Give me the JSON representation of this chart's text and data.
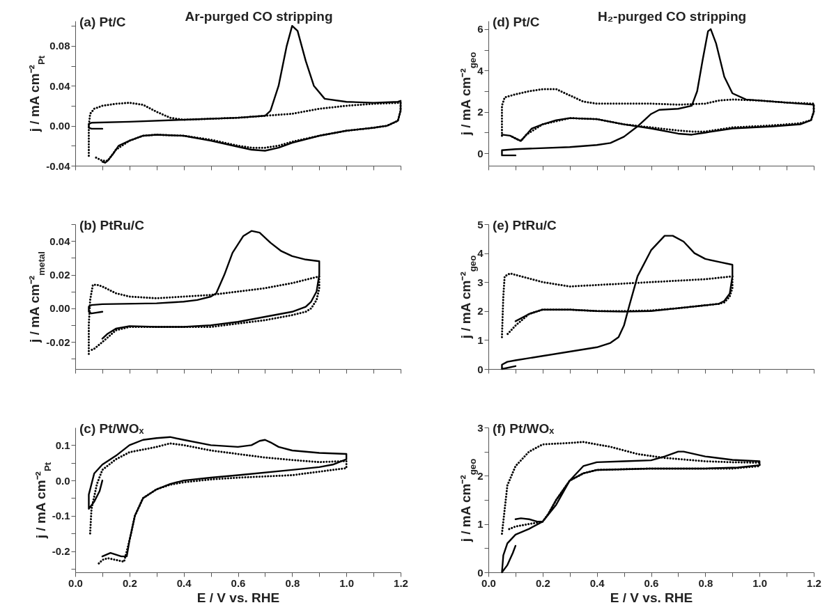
{
  "chart_data": [
    {
      "type": "line",
      "title": "(a) Pt/C",
      "subtitle": "Ar-purged CO stripping",
      "ylabel": "j / mA cm⁻²$_{Pt}$",
      "tick_labels": "y",
      "xlim": [
        0,
        1.2
      ],
      "xticks": [
        0,
        0.1,
        0.2,
        0.3,
        0.4,
        0.5,
        0.6,
        0.7,
        0.8,
        0.9,
        1,
        1.1,
        1.2
      ],
      "ylim": [
        -0.04,
        0.105
      ],
      "yticks": [
        -0.04,
        {
          "value": -0.02,
          "label": null
        },
        {
          "value": 0,
          "label": "0.00"
        },
        {
          "value": 0.02,
          "label": null
        },
        0.04,
        {
          "value": 0.06,
          "label": null
        },
        0.08,
        {
          "value": 0.1,
          "label": null
        }
      ],
      "series": [
        {
          "color": "#000000",
          "line_style": "solid",
          "x": [
            0.1,
            0.06,
            0.05,
            0.05,
            0.06,
            0.2,
            0.4,
            0.6,
            0.7,
            0.72,
            0.75,
            0.78,
            0.8,
            0.82,
            0.85,
            0.88,
            0.92,
            1.0,
            1.1,
            1.19,
            1.2,
            1.2,
            1.19,
            1.15,
            1.1,
            1.0,
            0.9,
            0.8,
            0.75,
            0.7,
            0.65,
            0.6,
            0.5,
            0.4,
            0.3,
            0.25,
            0.2,
            0.16,
            0.14,
            0.12,
            0.11,
            0.1
          ],
          "values": [
            -0.003,
            -0.003,
            -0.002,
            0.002,
            0.003,
            0.004,
            0.006,
            0.008,
            0.01,
            0.015,
            0.04,
            0.08,
            0.1,
            0.095,
            0.065,
            0.04,
            0.027,
            0.024,
            0.023,
            0.024,
            0.025,
            0.015,
            0.005,
            0.0,
            -0.002,
            -0.005,
            -0.01,
            -0.017,
            -0.022,
            -0.025,
            -0.024,
            -0.021,
            -0.015,
            -0.01,
            -0.009,
            -0.01,
            -0.015,
            -0.02,
            -0.028,
            -0.035,
            -0.037,
            -0.036
          ]
        },
        {
          "color": "#000000",
          "line_style": "dotted",
          "x": [
            0.05,
            0.05,
            0.055,
            0.07,
            0.1,
            0.15,
            0.2,
            0.25,
            0.3,
            0.35,
            0.4,
            0.5,
            0.6,
            0.7,
            0.8,
            0.9,
            1.0,
            1.1,
            1.2,
            1.2,
            1.19,
            1.15,
            1.1,
            1.0,
            0.9,
            0.8,
            0.75,
            0.7,
            0.65,
            0.6,
            0.5,
            0.4,
            0.3,
            0.25,
            0.2,
            0.15,
            0.12,
            0.1,
            0.07
          ],
          "values": [
            -0.03,
            0.0,
            0.012,
            0.017,
            0.02,
            0.022,
            0.023,
            0.021,
            0.014,
            0.008,
            0.006,
            0.007,
            0.008,
            0.01,
            0.012,
            0.017,
            0.02,
            0.022,
            0.023,
            0.015,
            0.005,
            0.0,
            -0.002,
            -0.005,
            -0.01,
            -0.016,
            -0.02,
            -0.022,
            -0.022,
            -0.02,
            -0.014,
            -0.01,
            -0.009,
            -0.01,
            -0.015,
            -0.024,
            -0.035,
            -0.035,
            -0.031
          ]
        }
      ]
    },
    {
      "type": "line",
      "title": "(d) Pt/C",
      "subtitle": "H₂-purged CO stripping",
      "ylabel": "j / mA cm⁻²$_{geo}$",
      "tick_labels": "y",
      "xlim": [
        0,
        1.2
      ],
      "xticks": [
        0,
        0.1,
        0.2,
        0.3,
        0.4,
        0.5,
        0.6,
        0.7,
        0.8,
        0.9,
        1,
        1.1,
        1.2
      ],
      "ylim": [
        -0.6,
        6.4
      ],
      "yticks": [
        0,
        {
          "value": 1,
          "label": null
        },
        2,
        {
          "value": 3,
          "label": null
        },
        4,
        {
          "value": 5,
          "label": null
        },
        6
      ],
      "series": [
        {
          "color": "#000000",
          "line_style": "solid",
          "x": [
            0.1,
            0.05,
            0.05,
            0.1,
            0.3,
            0.4,
            0.45,
            0.5,
            0.55,
            0.6,
            0.63,
            0.7,
            0.75,
            0.77,
            0.79,
            0.81,
            0.82,
            0.84,
            0.87,
            0.9,
            0.95,
            1.0,
            1.1,
            1.2,
            1.2,
            1.19,
            1.15,
            1.05,
            0.9,
            0.8,
            0.75,
            0.7,
            0.6,
            0.5,
            0.4,
            0.3,
            0.25,
            0.2,
            0.16,
            0.14,
            0.12,
            0.11,
            0.08,
            0.05
          ],
          "values": [
            -0.1,
            -0.1,
            0.15,
            0.2,
            0.3,
            0.4,
            0.5,
            0.8,
            1.3,
            1.9,
            2.1,
            2.15,
            2.3,
            3.0,
            4.5,
            5.9,
            6.0,
            5.3,
            3.7,
            2.9,
            2.6,
            2.55,
            2.45,
            2.35,
            2.0,
            1.6,
            1.4,
            1.3,
            1.2,
            1.0,
            0.9,
            0.95,
            1.2,
            1.4,
            1.65,
            1.7,
            1.6,
            1.4,
            1.2,
            0.9,
            0.6,
            0.65,
            0.85,
            0.9
          ]
        },
        {
          "color": "#000000",
          "line_style": "dotted",
          "x": [
            0.05,
            0.05,
            0.06,
            0.1,
            0.15,
            0.2,
            0.25,
            0.3,
            0.35,
            0.4,
            0.5,
            0.6,
            0.7,
            0.8,
            0.85,
            0.9,
            1.0,
            1.1,
            1.2,
            1.2,
            1.19,
            1.15,
            1.05,
            0.9,
            0.8,
            0.75,
            0.7,
            0.6,
            0.5,
            0.4,
            0.3,
            0.2,
            0.14,
            0.12,
            0.08
          ],
          "values": [
            0.85,
            2.3,
            2.7,
            2.85,
            3.0,
            3.1,
            3.1,
            2.8,
            2.5,
            2.4,
            2.4,
            2.4,
            2.35,
            2.4,
            2.55,
            2.6,
            2.55,
            2.45,
            2.4,
            2.0,
            1.6,
            1.45,
            1.35,
            1.25,
            1.05,
            1.05,
            1.1,
            1.25,
            1.4,
            1.65,
            1.7,
            1.4,
            0.9,
            0.6,
            0.85
          ]
        }
      ]
    },
    {
      "type": "line",
      "title": "(b) PtRu/C",
      "ylabel": "j / mA cm⁻²$_{metal}$",
      "tick_labels": "y",
      "xlim": [
        0,
        1.2
      ],
      "xticks": [
        0,
        0.1,
        0.2,
        0.3,
        0.4,
        0.5,
        0.6,
        0.7,
        0.8,
        0.9,
        1,
        1.1,
        1.2
      ],
      "ylim": [
        -0.036,
        0.05
      ],
      "yticks": [
        {
          "value": -0.03,
          "label": null
        },
        -0.02,
        {
          "value": -0.01,
          "label": null
        },
        {
          "value": 0,
          "label": "0.00"
        },
        {
          "value": 0.01,
          "label": null
        },
        0.02,
        {
          "value": 0.03,
          "label": null
        },
        0.04,
        {
          "value": 0.05,
          "label": null
        }
      ],
      "series": [
        {
          "color": "#000000",
          "line_style": "solid",
          "x": [
            0.1,
            0.06,
            0.05,
            0.05,
            0.06,
            0.1,
            0.3,
            0.4,
            0.45,
            0.5,
            0.52,
            0.55,
            0.58,
            0.62,
            0.65,
            0.68,
            0.72,
            0.76,
            0.8,
            0.85,
            0.9,
            0.9,
            0.89,
            0.87,
            0.85,
            0.8,
            0.7,
            0.6,
            0.5,
            0.4,
            0.3,
            0.2,
            0.15,
            0.12,
            0.1
          ],
          "values": [
            -0.002,
            -0.003,
            -0.002,
            0.001,
            0.002,
            0.0025,
            0.003,
            0.004,
            0.005,
            0.007,
            0.009,
            0.02,
            0.033,
            0.043,
            0.046,
            0.045,
            0.039,
            0.034,
            0.031,
            0.029,
            0.028,
            0.02,
            0.01,
            0.004,
            0.001,
            -0.002,
            -0.005,
            -0.008,
            -0.01,
            -0.011,
            -0.011,
            -0.0105,
            -0.012,
            -0.015,
            -0.018
          ]
        },
        {
          "color": "#000000",
          "line_style": "dotted",
          "x": [
            0.05,
            0.05,
            0.055,
            0.065,
            0.08,
            0.1,
            0.15,
            0.2,
            0.3,
            0.4,
            0.5,
            0.6,
            0.7,
            0.8,
            0.9,
            0.9,
            0.89,
            0.87,
            0.85,
            0.8,
            0.7,
            0.6,
            0.5,
            0.4,
            0.3,
            0.2,
            0.15,
            0.1,
            0.07,
            0.055
          ],
          "values": [
            -0.027,
            -0.01,
            0.005,
            0.014,
            0.014,
            0.013,
            0.009,
            0.007,
            0.006,
            0.007,
            0.008,
            0.01,
            0.012,
            0.015,
            0.019,
            0.012,
            0.005,
            0.0,
            -0.002,
            -0.004,
            -0.007,
            -0.009,
            -0.011,
            -0.011,
            -0.011,
            -0.011,
            -0.013,
            -0.02,
            -0.024,
            -0.025
          ]
        }
      ]
    },
    {
      "type": "line",
      "title": "(e) PtRu/C",
      "ylabel": "j / mA cm⁻²$_{geo}$",
      "tick_labels": "y",
      "xlim": [
        0,
        1.2
      ],
      "xticks": [
        0,
        0.1,
        0.2,
        0.3,
        0.4,
        0.5,
        0.6,
        0.7,
        0.8,
        0.9,
        1,
        1.1,
        1.2
      ],
      "ylim": [
        0,
        5
      ],
      "yticks": [
        0,
        1,
        2,
        3,
        4,
        5
      ],
      "series": [
        {
          "color": "#000000",
          "line_style": "solid",
          "x": [
            0.1,
            0.05,
            0.05,
            0.07,
            0.1,
            0.2,
            0.3,
            0.4,
            0.45,
            0.48,
            0.5,
            0.52,
            0.55,
            0.6,
            0.65,
            0.68,
            0.72,
            0.76,
            0.8,
            0.85,
            0.9,
            0.9,
            0.89,
            0.87,
            0.85,
            0.8,
            0.7,
            0.6,
            0.5,
            0.4,
            0.3,
            0.2,
            0.15,
            0.1
          ],
          "values": [
            0.1,
            0.0,
            0.15,
            0.25,
            0.3,
            0.45,
            0.6,
            0.75,
            0.9,
            1.1,
            1.5,
            2.2,
            3.2,
            4.1,
            4.6,
            4.6,
            4.4,
            4.0,
            3.8,
            3.7,
            3.6,
            3.2,
            2.6,
            2.35,
            2.25,
            2.2,
            2.1,
            2.0,
            1.98,
            2.0,
            2.05,
            2.05,
            1.9,
            1.65
          ]
        },
        {
          "color": "#000000",
          "line_style": "dotted",
          "x": [
            0.05,
            0.055,
            0.06,
            0.08,
            0.1,
            0.2,
            0.3,
            0.4,
            0.5,
            0.6,
            0.7,
            0.8,
            0.9,
            0.9,
            0.89,
            0.87,
            0.85,
            0.8,
            0.7,
            0.6,
            0.5,
            0.4,
            0.3,
            0.2,
            0.15,
            0.1,
            0.07
          ],
          "values": [
            1.1,
            2.5,
            3.2,
            3.3,
            3.25,
            3.0,
            2.85,
            2.9,
            2.95,
            3.0,
            3.05,
            3.1,
            3.2,
            2.8,
            2.5,
            2.3,
            2.25,
            2.2,
            2.1,
            2.02,
            2.0,
            2.0,
            2.05,
            2.05,
            1.9,
            1.5,
            1.2
          ]
        }
      ]
    },
    {
      "type": "line",
      "title": "(c) Pt/WOₓ",
      "xlabel": "E / V vs. RHE",
      "ylabel": "j / mA cm⁻²$_{Pt}$",
      "xlim": [
        0,
        1.2
      ],
      "xticks": [
        {
          "value": 0,
          "label": "0.0"
        },
        {
          "value": 0.1,
          "label": null
        },
        0.2,
        {
          "value": 0.3,
          "label": null
        },
        0.4,
        {
          "value": 0.5,
          "label": null
        },
        0.6,
        {
          "value": 0.7,
          "label": null
        },
        0.8,
        {
          "value": 0.9,
          "label": null
        },
        {
          "value": 1,
          "label": "1.0"
        },
        {
          "value": 1.1,
          "label": null
        },
        1.2
      ],
      "ylim": [
        -0.26,
        0.15
      ],
      "yticks": [
        {
          "value": -0.25,
          "label": null
        },
        -0.2,
        {
          "value": -0.15,
          "label": null
        },
        -0.1,
        {
          "value": -0.05,
          "label": null
        },
        {
          "value": 0,
          "label": "0.0"
        },
        {
          "value": 0.05,
          "label": null
        },
        0.1
      ],
      "series": [
        {
          "color": "#000000",
          "line_style": "solid",
          "x": [
            0.1,
            0.09,
            0.07,
            0.05,
            0.05,
            0.07,
            0.1,
            0.15,
            0.2,
            0.25,
            0.3,
            0.35,
            0.4,
            0.5,
            0.6,
            0.65,
            0.68,
            0.7,
            0.72,
            0.75,
            0.8,
            0.9,
            1.0,
            1.0,
            0.95,
            0.9,
            0.8,
            0.6,
            0.5,
            0.4,
            0.35,
            0.3,
            0.25,
            0.22,
            0.2,
            0.19,
            0.17,
            0.13,
            0.1
          ],
          "values": [
            0.0,
            -0.03,
            -0.06,
            -0.08,
            -0.04,
            0.02,
            0.045,
            0.07,
            0.1,
            0.115,
            0.12,
            0.123,
            0.115,
            0.1,
            0.095,
            0.1,
            0.112,
            0.115,
            0.108,
            0.095,
            0.085,
            0.078,
            0.075,
            0.06,
            0.045,
            0.038,
            0.03,
            0.015,
            0.008,
            0.0,
            -0.01,
            -0.025,
            -0.05,
            -0.1,
            -0.17,
            -0.215,
            -0.215,
            -0.205,
            -0.215
          ]
        },
        {
          "color": "#000000",
          "line_style": "dotted",
          "x": [
            0.055,
            0.06,
            0.08,
            0.09,
            0.1,
            0.15,
            0.2,
            0.3,
            0.35,
            0.4,
            0.5,
            0.6,
            0.7,
            0.8,
            0.9,
            1.0,
            1.0,
            0.9,
            0.8,
            0.6,
            0.5,
            0.4,
            0.35,
            0.3,
            0.25,
            0.22,
            0.2,
            0.18,
            0.15,
            0.12,
            0.1,
            0.08
          ],
          "values": [
            -0.15,
            -0.08,
            -0.01,
            0.01,
            0.03,
            0.06,
            0.08,
            0.095,
            0.105,
            0.1,
            0.085,
            0.075,
            0.065,
            0.058,
            0.052,
            0.055,
            0.035,
            0.025,
            0.015,
            0.008,
            0.003,
            -0.005,
            -0.012,
            -0.025,
            -0.05,
            -0.1,
            -0.17,
            -0.23,
            -0.225,
            -0.22,
            -0.225,
            -0.24
          ]
        }
      ]
    },
    {
      "type": "line",
      "title": "(f) Pt/WOₓ",
      "xlabel": "E / V vs. RHE",
      "ylabel": "j / mA cm⁻²$_{geo}$",
      "xlim": [
        0,
        1.2
      ],
      "xticks": [
        {
          "value": 0,
          "label": "0.0"
        },
        {
          "value": 0.1,
          "label": null
        },
        0.2,
        {
          "value": 0.3,
          "label": null
        },
        0.4,
        {
          "value": 0.5,
          "label": null
        },
        0.6,
        {
          "value": 0.7,
          "label": null
        },
        0.8,
        {
          "value": 0.9,
          "label": null
        },
        {
          "value": 1,
          "label": "1.0"
        },
        {
          "value": 1.1,
          "label": null
        },
        1.2
      ],
      "ylim": [
        0,
        3
      ],
      "yticks": [
        0,
        {
          "value": 0.5,
          "label": null
        },
        1,
        {
          "value": 1.5,
          "label": null
        },
        2,
        {
          "value": 2.5,
          "label": null
        },
        3
      ],
      "series": [
        {
          "color": "#000000",
          "line_style": "solid",
          "x": [
            0.1,
            0.09,
            0.07,
            0.05,
            0.055,
            0.07,
            0.1,
            0.15,
            0.2,
            0.25,
            0.3,
            0.35,
            0.4,
            0.5,
            0.6,
            0.65,
            0.7,
            0.72,
            0.8,
            0.9,
            1.0,
            1.0,
            0.92,
            0.8,
            0.6,
            0.4,
            0.35,
            0.3,
            0.25,
            0.22,
            0.2,
            0.18,
            0.15,
            0.12,
            0.1
          ],
          "values": [
            0.55,
            0.4,
            0.15,
            0.0,
            0.35,
            0.6,
            0.78,
            0.9,
            1.05,
            1.4,
            1.9,
            2.2,
            2.28,
            2.3,
            2.32,
            2.4,
            2.5,
            2.5,
            2.4,
            2.33,
            2.3,
            2.22,
            2.17,
            2.15,
            2.15,
            2.12,
            2.05,
            1.9,
            1.5,
            1.2,
            1.05,
            1.05,
            1.1,
            1.12,
            1.1
          ]
        },
        {
          "color": "#000000",
          "line_style": "dotted",
          "x": [
            0.05,
            0.06,
            0.07,
            0.1,
            0.15,
            0.2,
            0.3,
            0.35,
            0.45,
            0.55,
            0.65,
            0.8,
            0.9,
            1.0,
            1.0,
            0.9,
            0.8,
            0.6,
            0.4,
            0.35,
            0.3,
            0.25,
            0.22,
            0.2,
            0.15,
            0.1,
            0.07
          ],
          "values": [
            0.8,
            1.3,
            1.8,
            2.2,
            2.5,
            2.65,
            2.68,
            2.7,
            2.6,
            2.45,
            2.37,
            2.3,
            2.28,
            2.27,
            2.2,
            2.15,
            2.15,
            2.15,
            2.12,
            2.05,
            1.9,
            1.5,
            1.2,
            1.05,
            1.0,
            0.95,
            0.88
          ]
        }
      ]
    }
  ]
}
